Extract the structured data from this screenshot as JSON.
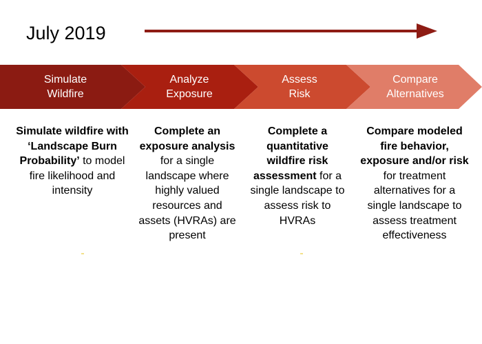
{
  "header": {
    "date_label": "July 2019",
    "arrow_color": "#8e1c14"
  },
  "steps": [
    {
      "label_line1": "Simulate",
      "label_line2": "Wildfire",
      "color": "#8b1b12",
      "description": [
        {
          "text": "Simulate wildfire with ‘Landscape Burn Probability’",
          "bold": true
        },
        {
          "text": " to model fire likelihood and intensity",
          "bold": false
        }
      ]
    },
    {
      "label_line1": "Analyze",
      "label_line2": "Exposure",
      "color": "#a91f10",
      "description": [
        {
          "text": "Complete an exposure analysis",
          "bold": true
        },
        {
          "text": " for a single landscape where highly valued resources and assets (HVRAs) are present",
          "bold": false
        }
      ]
    },
    {
      "label_line1": "Assess",
      "label_line2": "Risk",
      "color": "#cc4a2f",
      "description": [
        {
          "text": "Complete a quantitative wildfire risk assessment",
          "bold": true
        },
        {
          "text": " for a single landscape to assess risk to HVRAs",
          "bold": false
        }
      ]
    },
    {
      "label_line1": "Compare",
      "label_line2": "Alternatives",
      "color": "#e07d68",
      "description": [
        {
          "text": "Compare modeled fire behavior, exposure and/or risk",
          "bold": true
        },
        {
          "text": " for treatment alternatives for a single landscape to assess treatment effectiveness",
          "bold": false
        }
      ]
    }
  ]
}
